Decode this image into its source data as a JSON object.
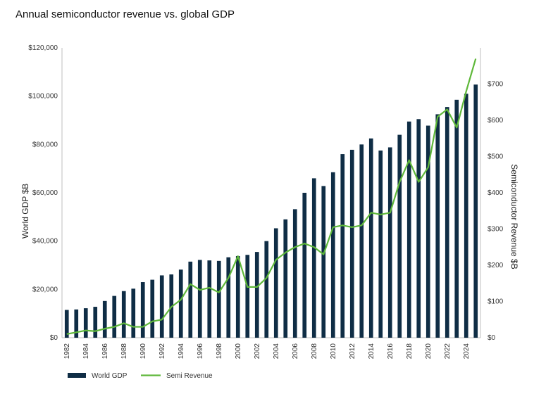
{
  "title": "Annual semiconductor revenue vs. global GDP",
  "chart_data": {
    "type": "bar",
    "title": "Annual semiconductor revenue vs. global GDP",
    "xlabel": "",
    "ylabel": "World GDP $B",
    "y2label": "Semiconductor Revenue $B",
    "ylim": [
      0,
      120000
    ],
    "y2lim": [
      0,
      800
    ],
    "categories": [
      "1982",
      "1983",
      "1984",
      "1985",
      "1986",
      "1987",
      "1988",
      "1989",
      "1990",
      "1991",
      "1992",
      "1993",
      "1994",
      "1995",
      "1996",
      "1997",
      "1998",
      "1999",
      "2000",
      "2001",
      "2002",
      "2003",
      "2004",
      "2005",
      "2006",
      "2007",
      "2008",
      "2009",
      "2010",
      "2011",
      "2012",
      "2013",
      "2014",
      "2015",
      "2016",
      "2017",
      "2018",
      "2019",
      "2020",
      "2021",
      "2022",
      "2023",
      "2024",
      "2025"
    ],
    "x_tick_labels": [
      "1982",
      "1984",
      "1986",
      "1988",
      "1990",
      "1992",
      "1994",
      "1996",
      "1998",
      "2000",
      "2002",
      "2004",
      "2006",
      "2008",
      "2010",
      "2012",
      "2014",
      "2016",
      "2018",
      "2020",
      "2022",
      "2024"
    ],
    "y_tick_labels": [
      "$0",
      "$20,000",
      "$40,000",
      "$60,000",
      "$80,000",
      "$100,000",
      "$120,000"
    ],
    "y2_tick_labels": [
      "$0",
      "$100",
      "$200",
      "$300",
      "$400",
      "$500",
      "$600",
      "$700"
    ],
    "series": [
      {
        "name": "World GDP",
        "type": "bar",
        "axis": "left",
        "color": "#0f2d45",
        "values": [
          11500,
          11700,
          12200,
          12800,
          15200,
          17300,
          19300,
          20300,
          23000,
          24000,
          25800,
          26200,
          28200,
          31500,
          32200,
          32000,
          31800,
          33300,
          33800,
          34300,
          35500,
          40000,
          45300,
          49000,
          53200,
          60000,
          66000,
          62800,
          68500,
          76000,
          77800,
          80000,
          82500,
          77500,
          78800,
          84000,
          89500,
          90500,
          87800,
          92500,
          95500,
          98500,
          101000,
          104800
        ]
      },
      {
        "name": "Semi Revenue",
        "type": "line",
        "axis": "right",
        "color": "#5fb83a",
        "values": [
          10,
          15,
          20,
          18,
          25,
          30,
          40,
          30,
          30,
          45,
          50,
          85,
          105,
          148,
          132,
          138,
          125,
          165,
          225,
          140,
          140,
          165,
          215,
          235,
          250,
          260,
          250,
          230,
          305,
          310,
          305,
          310,
          345,
          340,
          345,
          430,
          490,
          430,
          470,
          610,
          630,
          580,
          680,
          770
        ]
      }
    ],
    "legend": {
      "position": "bottom-left",
      "entries": [
        "World GDP",
        "Semi Revenue"
      ]
    },
    "grid": false
  }
}
